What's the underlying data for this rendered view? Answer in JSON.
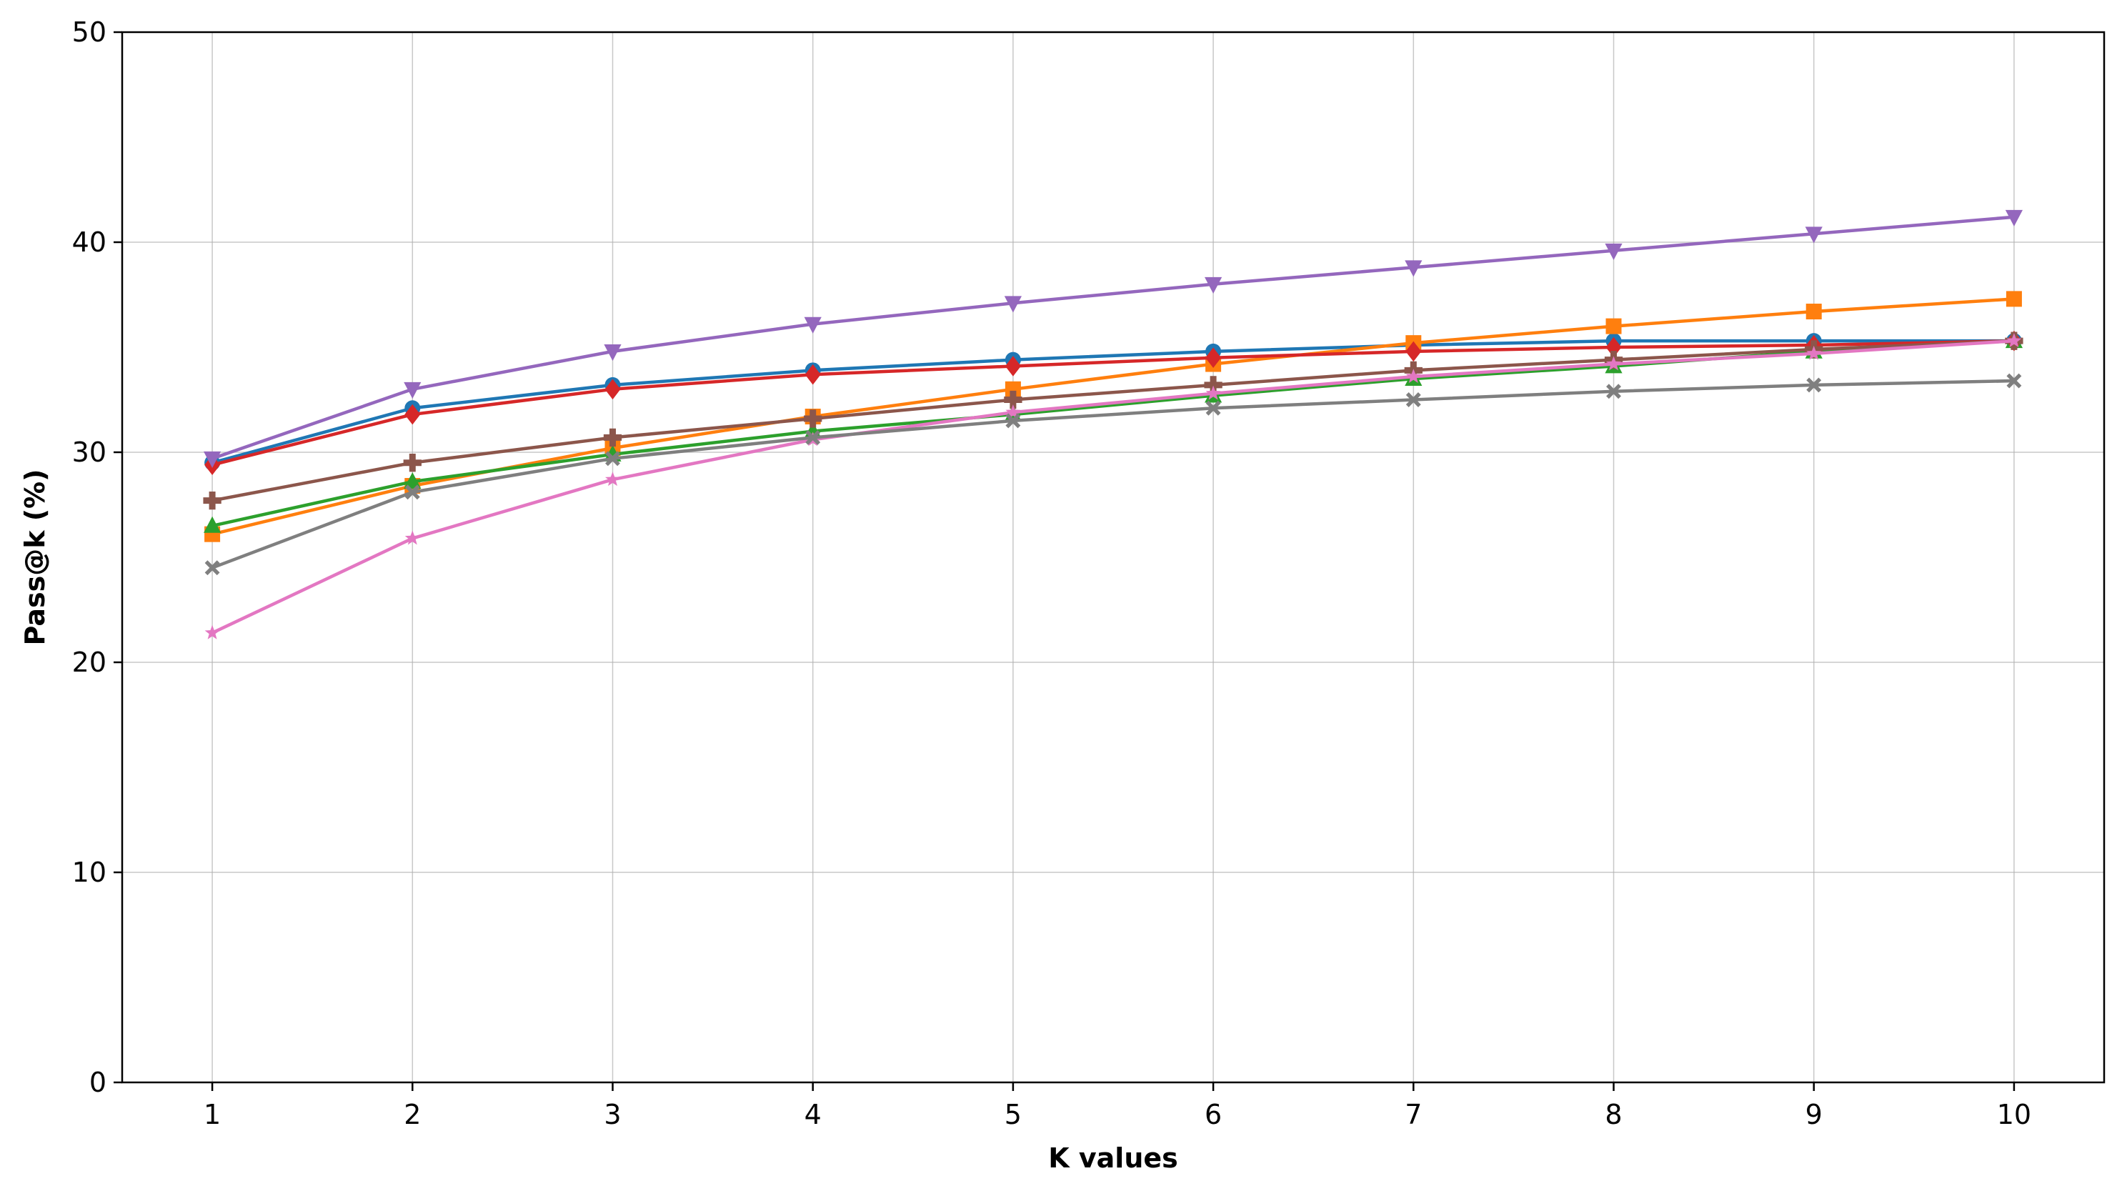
{
  "chart_data": {
    "type": "line",
    "title": "",
    "xlabel": "K values",
    "ylabel": "Pass@k (%)",
    "x": [
      1,
      2,
      3,
      4,
      5,
      6,
      7,
      8,
      9,
      10
    ],
    "xlim": [
      0.55,
      10.45
    ],
    "ylim": [
      0,
      50
    ],
    "yticks": [
      0,
      10,
      20,
      30,
      40,
      50
    ],
    "xticks": [
      1,
      2,
      3,
      4,
      5,
      6,
      7,
      8,
      9,
      10
    ],
    "grid": true,
    "legend": "none",
    "series": [
      {
        "color": "#1f77b4",
        "marker": "circle",
        "values": [
          29.5,
          32.1,
          33.2,
          33.9,
          34.4,
          34.8,
          35.1,
          35.3,
          35.3,
          35.3
        ]
      },
      {
        "color": "#ff7f0e",
        "marker": "square",
        "values": [
          26.1,
          28.4,
          30.2,
          31.7,
          33.0,
          34.2,
          35.2,
          36.0,
          36.7,
          37.3
        ]
      },
      {
        "color": "#2ca02c",
        "marker": "triangle-up",
        "values": [
          26.5,
          28.6,
          29.9,
          31.0,
          31.8,
          32.7,
          33.5,
          34.1,
          34.8,
          35.3
        ]
      },
      {
        "color": "#d62728",
        "marker": "diamond",
        "values": [
          29.4,
          31.8,
          33.0,
          33.7,
          34.1,
          34.5,
          34.8,
          35.0,
          35.1,
          35.3
        ]
      },
      {
        "color": "#9467bd",
        "marker": "triangle-down",
        "values": [
          29.7,
          33.0,
          34.8,
          36.1,
          37.1,
          38.0,
          38.8,
          39.6,
          40.4,
          41.2
        ]
      },
      {
        "color": "#8c564b",
        "marker": "plus",
        "values": [
          27.7,
          29.5,
          30.7,
          31.6,
          32.5,
          33.2,
          33.9,
          34.4,
          34.9,
          35.3
        ]
      },
      {
        "color": "#e377c2",
        "marker": "star",
        "values": [
          21.4,
          25.9,
          28.7,
          30.6,
          31.9,
          32.8,
          33.6,
          34.2,
          34.7,
          35.3
        ]
      },
      {
        "color": "#7f7f7f",
        "marker": "x",
        "values": [
          24.5,
          28.1,
          29.7,
          30.7,
          31.5,
          32.1,
          32.5,
          32.9,
          33.2,
          33.4
        ]
      }
    ]
  }
}
